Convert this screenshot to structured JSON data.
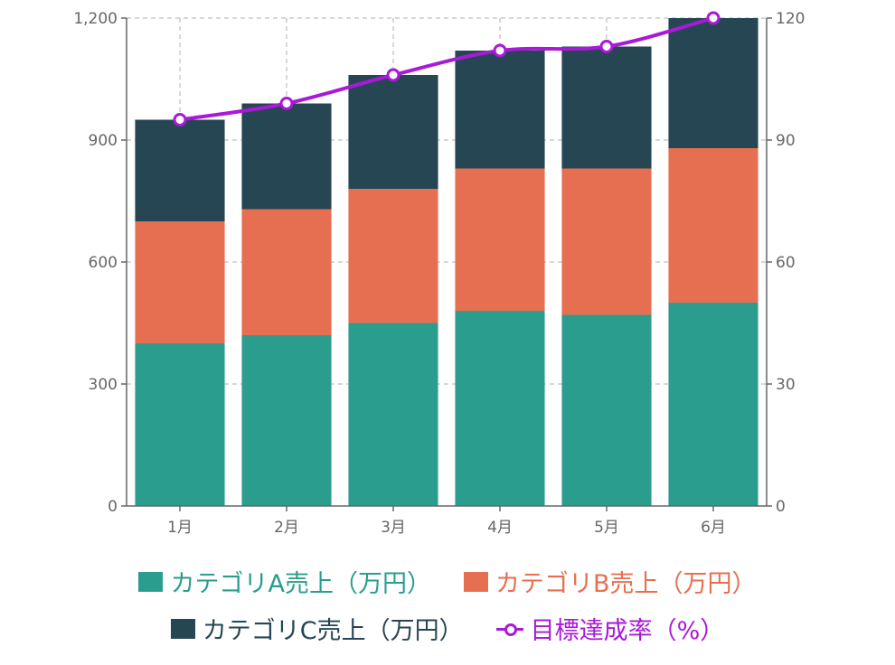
{
  "chart_data": {
    "type": "bar",
    "stacked": true,
    "categories": [
      "1月",
      "2月",
      "3月",
      "4月",
      "5月",
      "6月"
    ],
    "series": [
      {
        "name": "カテゴリA売上（万円）",
        "type": "bar",
        "axis": "left",
        "color": "#2A9D8F",
        "values": [
          400,
          420,
          450,
          480,
          470,
          500
        ]
      },
      {
        "name": "カテゴリB売上（万円）",
        "type": "bar",
        "axis": "left",
        "color": "#E76F51",
        "values": [
          300,
          310,
          330,
          350,
          360,
          380
        ]
      },
      {
        "name": "カテゴリC売上（万円）",
        "type": "bar",
        "axis": "left",
        "color": "#264653",
        "values": [
          250,
          260,
          280,
          290,
          300,
          320
        ]
      },
      {
        "name": "目標達成率（%）",
        "type": "line",
        "axis": "right",
        "color": "#A919D8",
        "values": [
          95,
          99,
          106,
          112,
          113,
          120
        ]
      }
    ],
    "y_left": {
      "range": [
        0,
        1200
      ],
      "ticks": [
        "0",
        "300",
        "600",
        "900",
        "1,200"
      ]
    },
    "y_right": {
      "range": [
        0,
        120
      ],
      "ticks": [
        "0",
        "30",
        "60",
        "90",
        "120"
      ]
    },
    "grid": true,
    "legend_position": "bottom"
  }
}
